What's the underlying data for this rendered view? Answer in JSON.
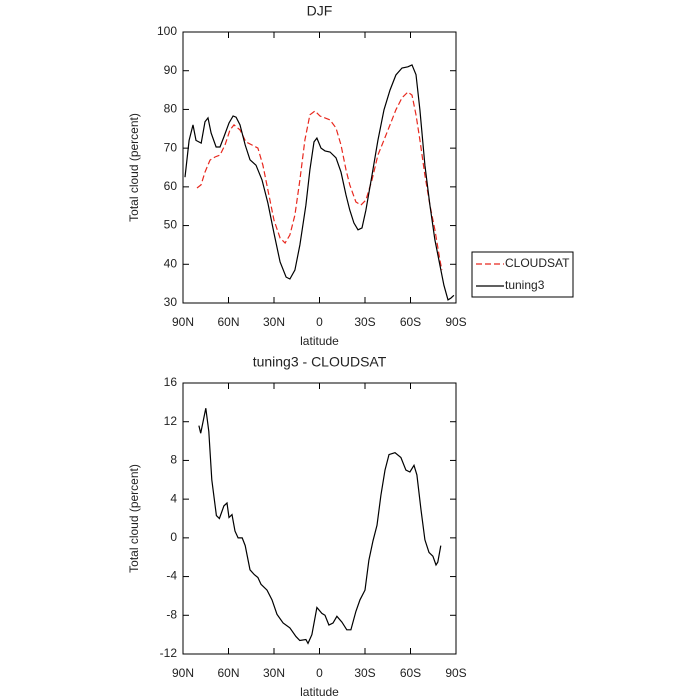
{
  "chart_data": [
    {
      "type": "line",
      "title": "DJF",
      "xlabel": "latitude",
      "ylabel": "Total cloud (percent)",
      "xlim": [
        90,
        -90
      ],
      "xticks": [
        {
          "value": 90,
          "label": "90N"
        },
        {
          "value": 60,
          "label": "60N"
        },
        {
          "value": 30,
          "label": "30N"
        },
        0,
        {
          "value": -30,
          "label": "30S"
        },
        {
          "value": -60,
          "label": "60S"
        },
        {
          "value": -90,
          "label": "90S"
        }
      ],
      "ylim": [
        30,
        100
      ],
      "yticks": [
        30,
        40,
        50,
        60,
        70,
        80,
        90,
        100
      ],
      "legend": "right",
      "series": [
        {
          "name": "CLOUDSAT",
          "color": "#e8281e",
          "dash": true,
          "x": [
            80.8,
            78.1,
            75.5,
            72.2,
            68.9,
            65.6,
            62.3,
            59,
            56.4,
            52.4,
            48.5,
            44.5,
            40.6,
            37.3,
            34,
            30,
            26,
            22.7,
            19.5,
            16.2,
            12.9,
            9.6,
            6.3,
            3,
            -0.3,
            -3.6,
            -6.9,
            -10.9,
            -14.2,
            -17.5,
            -20,
            -24,
            -27.3,
            -30.6,
            -34.6,
            -38.5,
            -42.5,
            -46.5,
            -50.4,
            -54.4,
            -58.3,
            -61,
            -63.6,
            -66.2,
            -69.5,
            -72.8,
            -76.1,
            -79.4,
            -80.7
          ],
          "values": [
            59.7,
            60.5,
            63.8,
            66.9,
            67.7,
            68.2,
            70.8,
            74.7,
            76,
            74.7,
            71.6,
            70.8,
            70,
            65.6,
            59.2,
            51.4,
            46.8,
            45.5,
            47.6,
            52.7,
            61.8,
            72.1,
            78.6,
            79.6,
            78.3,
            77.8,
            77.3,
            75.2,
            70.8,
            64.4,
            60.5,
            56.1,
            55.3,
            56.6,
            61.8,
            68.2,
            72.1,
            76,
            79.9,
            83,
            84.5,
            83.7,
            78.6,
            72.1,
            63,
            55.3,
            48.9,
            41.1,
            38.5
          ]
        },
        {
          "name": "tuning3",
          "color": "#000000",
          "dash": false,
          "x": [
            88.7,
            86,
            83.4,
            81.4,
            78,
            75.5,
            73.5,
            71.5,
            68.2,
            65.6,
            63,
            59.7,
            57,
            55,
            52.4,
            49,
            45.8,
            41.9,
            37.9,
            34,
            30,
            26,
            22,
            19.5,
            16.2,
            12.9,
            9,
            6.3,
            3.6,
            1.7,
            -1,
            -3.6,
            -6.9,
            -10.9,
            -14.2,
            -17.5,
            -20,
            -22.7,
            -25.4,
            -28,
            -30.6,
            -34.6,
            -38.5,
            -42.5,
            -46.5,
            -50.4,
            -54.4,
            -58.3,
            -61,
            -63.6,
            -66.2,
            -69.5,
            -72.8,
            -76.1,
            -79.4,
            -82,
            -84.7,
            -86.7,
            -88.6
          ],
          "values": [
            62.5,
            72,
            76,
            72,
            71.3,
            76.8,
            77.8,
            73.9,
            70.3,
            70.3,
            72.9,
            76.5,
            78.3,
            78,
            76,
            70.8,
            67,
            65.6,
            61.8,
            55.8,
            48,
            40.6,
            36.7,
            36.2,
            38.5,
            45,
            55.3,
            64.4,
            71.6,
            72.6,
            70,
            69.3,
            69,
            67.5,
            63.8,
            57.9,
            54,
            50.7,
            48.9,
            49.4,
            54,
            63,
            72,
            79.9,
            85,
            88.9,
            90.7,
            91,
            91.5,
            89,
            79.9,
            65.6,
            55.3,
            46.3,
            39.8,
            34.6,
            30.8,
            31.3,
            32
          ]
        }
      ]
    },
    {
      "type": "line",
      "title": "tuning3 - CLOUDSAT",
      "xlabel": "latitude",
      "ylabel": "Total cloud (percent)",
      "xlim": [
        90,
        -90
      ],
      "xticks": [
        {
          "value": 90,
          "label": "90N"
        },
        {
          "value": 60,
          "label": "60N"
        },
        {
          "value": 30,
          "label": "30N"
        },
        0,
        {
          "value": -30,
          "label": "30S"
        },
        {
          "value": -60,
          "label": "60S"
        },
        {
          "value": -90,
          "label": "90S"
        }
      ],
      "ylim": [
        -12,
        16
      ],
      "yticks": [
        -12,
        -8,
        -4,
        0,
        4,
        8,
        12,
        16
      ],
      "series": [
        {
          "color": "#000000",
          "dash": false,
          "x": [
            79.5,
            78.3,
            75,
            73,
            71,
            68,
            66,
            63,
            61,
            59.7,
            57.7,
            55.7,
            53.7,
            51,
            49,
            45.8,
            43,
            40.6,
            38.6,
            34.6,
            31.3,
            28,
            24,
            19.5,
            15.5,
            13,
            9,
            7.6,
            5,
            1.7,
            -1.6,
            -3.6,
            -6.2,
            -8.9,
            -11.5,
            -14.8,
            -18,
            -20.7,
            -24,
            -26.7,
            -30,
            -32.6,
            -35.3,
            -37.9,
            -40.5,
            -43.2,
            -45.8,
            -49.8,
            -53.7,
            -57,
            -59.6,
            -62.3,
            -64.2,
            -66.9,
            -69.5,
            -72.2,
            -74.8,
            -76.8,
            -78,
            -80
          ],
          "values": [
            11.6,
            10.8,
            13.4,
            11,
            6,
            2.3,
            2,
            3.3,
            3.6,
            2.1,
            2.4,
            0.7,
            0,
            0,
            -0.8,
            -3.3,
            -3.8,
            -4.1,
            -4.8,
            -5.4,
            -6.4,
            -7.9,
            -8.8,
            -9.3,
            -10.2,
            -10.6,
            -10.5,
            -10.9,
            -10,
            -7.2,
            -7.8,
            -8,
            -9,
            -8.8,
            -8.1,
            -8.7,
            -9.5,
            -9.5,
            -7.6,
            -6.4,
            -5.4,
            -2.3,
            -0.3,
            1.3,
            4.4,
            7,
            8.6,
            8.8,
            8.3,
            7,
            6.8,
            7.5,
            6.5,
            2.9,
            -0.2,
            -1.5,
            -1.9,
            -2.8,
            -2.5,
            -0.8
          ]
        }
      ]
    }
  ]
}
